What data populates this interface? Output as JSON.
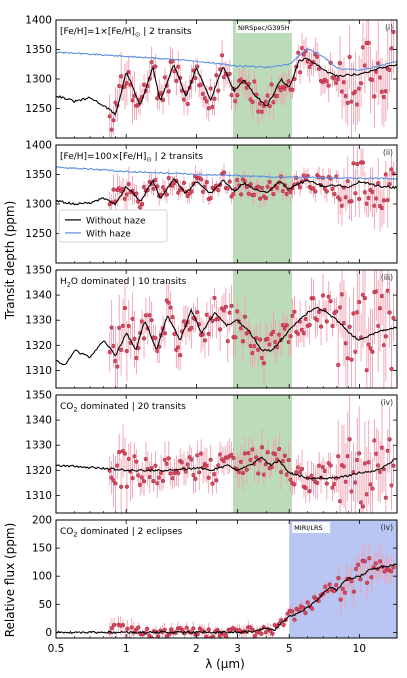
{
  "figure": {
    "ylabel_main": "Transit depth (ppm)",
    "ylabel_bottom": "Relative flux (ppm)",
    "xlabel": "λ (μm)",
    "x_ticks": [
      "0.5",
      "1",
      "2",
      "3",
      "5",
      "10"
    ],
    "legend": {
      "without_haze": "Without haze",
      "with_haze": "With haze"
    }
  },
  "colors": {
    "model": "#000000",
    "haze": "#5b8fe0",
    "data": "#d9485f",
    "errorbar": "#f0a0b0",
    "nirspec_band": "#8fc48a",
    "miri_band": "#7f95e8"
  },
  "chart_data": [
    {
      "type": "line",
      "panel": "i",
      "roman": "(i)",
      "title_prefix": "[Fe/H]=1×[Fe/H]",
      "title_suffix": " | 2 transits",
      "band_label": "NIRSpec/G395H",
      "band": [
        2.87,
        5.14
      ],
      "xlim": [
        0.5,
        14.5
      ],
      "xscale": "log",
      "ylim": [
        1200,
        1400
      ],
      "yticks": [
        1250,
        1300,
        1350,
        1400
      ],
      "series": [
        {
          "name": "Without haze",
          "x": [
            0.5,
            0.6,
            0.7,
            0.8,
            0.9,
            1.0,
            1.15,
            1.3,
            1.4,
            1.6,
            1.8,
            2.0,
            2.3,
            2.6,
            2.9,
            3.2,
            3.6,
            4.0,
            4.3,
            4.6,
            5.0,
            5.5,
            6.0,
            7.0,
            8.0,
            9.0,
            10.0,
            11.0,
            12.0,
            14.5
          ],
          "y": [
            1272,
            1262,
            1268,
            1255,
            1240,
            1312,
            1255,
            1320,
            1262,
            1325,
            1270,
            1318,
            1265,
            1322,
            1280,
            1298,
            1270,
            1255,
            1275,
            1300,
            1285,
            1330,
            1335,
            1315,
            1305,
            1307,
            1308,
            1312,
            1318,
            1325
          ]
        },
        {
          "name": "With haze",
          "x": [
            0.5,
            1.0,
            2.0,
            3.0,
            4.0,
            5.0,
            6.0,
            7.0,
            8.0,
            10.0,
            14.5
          ],
          "y": [
            1345,
            1338,
            1330,
            1322,
            1320,
            1325,
            1352,
            1338,
            1318,
            1315,
            1330
          ]
        }
      ],
      "data_points": {
        "x_range": [
          0.85,
          14.0
        ],
        "count": 150,
        "y_center": 1305,
        "y_spread": 45
      }
    },
    {
      "type": "line",
      "panel": "ii",
      "roman": "(ii)",
      "title_prefix": "[Fe/H]=100×[Fe/H]",
      "title_suffix": " | 2 transits",
      "band": [
        2.87,
        5.14
      ],
      "xlim": [
        0.5,
        14.5
      ],
      "xscale": "log",
      "ylim": [
        1200,
        1400
      ],
      "yticks": [
        1250,
        1300,
        1350,
        1400
      ],
      "series": [
        {
          "name": "Without haze",
          "x": [
            0.5,
            0.6,
            0.7,
            0.8,
            0.9,
            1.0,
            1.15,
            1.3,
            1.4,
            1.6,
            1.8,
            2.0,
            2.3,
            2.6,
            2.9,
            3.2,
            3.6,
            4.0,
            4.3,
            4.6,
            5.0,
            5.5,
            6.0,
            7.0,
            8.0,
            9.0,
            10.0,
            11.0,
            12.0,
            14.5
          ],
          "y": [
            1305,
            1300,
            1302,
            1310,
            1300,
            1330,
            1305,
            1340,
            1310,
            1342,
            1318,
            1338,
            1318,
            1340,
            1322,
            1335,
            1325,
            1318,
            1330,
            1338,
            1325,
            1335,
            1340,
            1330,
            1332,
            1328,
            1338,
            1335,
            1330,
            1328
          ]
        },
        {
          "name": "With haze",
          "x": [
            0.5,
            1.0,
            2.0,
            4.0,
            8.0,
            14.5
          ],
          "y": [
            1362,
            1355,
            1350,
            1346,
            1344,
            1343
          ]
        }
      ],
      "data_points": {
        "x_range": [
          0.85,
          14.0
        ],
        "count": 150,
        "y_center": 1330,
        "y_spread": 30
      }
    },
    {
      "type": "line",
      "panel": "iii",
      "roman": "(iii)",
      "title_prefix": "H",
      "title_sub": "2",
      "title_suffix": "O dominated | 10 transits",
      "band": [
        2.87,
        5.14
      ],
      "xlim": [
        0.5,
        14.5
      ],
      "xscale": "log",
      "ylim": [
        1303,
        1350
      ],
      "yticks": [
        1310,
        1320,
        1330,
        1340,
        1350
      ],
      "series": [
        {
          "name": "Without haze",
          "x": [
            0.5,
            0.55,
            0.6,
            0.7,
            0.8,
            0.9,
            1.0,
            1.1,
            1.2,
            1.35,
            1.5,
            1.7,
            1.9,
            2.1,
            2.4,
            2.7,
            3.0,
            3.4,
            3.8,
            4.2,
            4.6,
            5.0,
            5.5,
            6.0,
            6.5,
            7.0,
            8.0,
            9.0,
            10.0,
            11.0,
            12.5,
            14.5
          ],
          "y": [
            1314,
            1312,
            1318,
            1315,
            1322,
            1316,
            1325,
            1318,
            1330,
            1318,
            1332,
            1322,
            1334,
            1325,
            1333,
            1328,
            1330,
            1325,
            1318,
            1318,
            1322,
            1326,
            1330,
            1333,
            1335,
            1334,
            1330,
            1325,
            1322,
            1324,
            1326,
            1327
          ]
        }
      ],
      "data_points": {
        "x_range": [
          0.85,
          14.0
        ],
        "count": 150,
        "y_center": 1325,
        "y_spread": 14
      }
    },
    {
      "type": "line",
      "panel": "iv",
      "roman": "(iv)",
      "title_prefix": "CO",
      "title_sub": "2",
      "title_suffix": " dominated | 20 transits",
      "band": [
        2.87,
        5.14
      ],
      "xlim": [
        0.5,
        14.5
      ],
      "xscale": "log",
      "ylim": [
        1303,
        1350
      ],
      "yticks": [
        1310,
        1320,
        1330,
        1340,
        1350
      ],
      "series": [
        {
          "name": "Without haze",
          "x": [
            0.5,
            1.0,
            1.5,
            2.0,
            2.3,
            2.7,
            3.0,
            3.4,
            3.8,
            4.2,
            4.5,
            5.0,
            6.0,
            7.0,
            8.0,
            9.0,
            10.0,
            12.0,
            14.5
          ],
          "y": [
            1322,
            1320,
            1320,
            1321,
            1320,
            1322,
            1320,
            1322,
            1325,
            1322,
            1324,
            1319,
            1317,
            1317,
            1317,
            1318,
            1319,
            1320,
            1325
          ]
        }
      ],
      "data_points": {
        "x_range": [
          0.85,
          14.0
        ],
        "count": 150,
        "y_center": 1320,
        "y_spread": 12
      }
    },
    {
      "type": "line",
      "panel": "v",
      "roman": "(iv)",
      "title_prefix": "CO",
      "title_sub": "2",
      "title_suffix": " dominated | 2 eclipses",
      "band_label": "MIRI/LRS",
      "band": [
        5.0,
        14.5
      ],
      "xlim": [
        0.5,
        14.5
      ],
      "xscale": "log",
      "ylim": [
        -10,
        200
      ],
      "yticks": [
        0,
        50,
        100,
        150,
        200
      ],
      "series": [
        {
          "name": "Without haze",
          "x": [
            0.5,
            1.0,
            2.0,
            3.0,
            3.5,
            4.0,
            4.3,
            4.7,
            5.0,
            5.5,
            6.0,
            6.5,
            7.0,
            7.5,
            8.0,
            8.5,
            9.0,
            10.0,
            11.0,
            12.0,
            13.0,
            14.5
          ],
          "y": [
            0,
            0,
            0,
            0,
            2,
            8,
            3,
            20,
            28,
            35,
            45,
            55,
            70,
            80,
            75,
            88,
            95,
            100,
            110,
            115,
            118,
            120
          ]
        }
      ],
      "data_points": {
        "x_range": [
          0.85,
          14.0
        ],
        "count": 130,
        "y_center": 0,
        "y_spread": 20
      }
    }
  ]
}
